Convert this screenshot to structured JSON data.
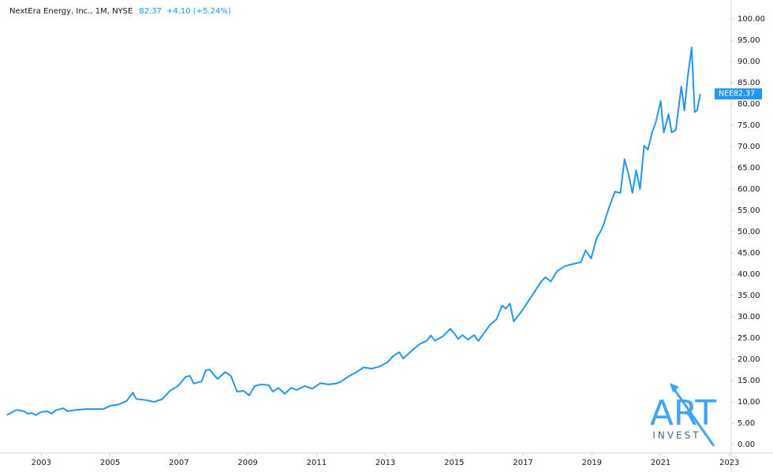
{
  "chart_data": {
    "type": "line",
    "title": "NextEra Energy, Inc., 1M, NYSE",
    "symbol": "NEE",
    "last_price": 82.37,
    "change_text": "+4.10 (+5.24%)",
    "watermark": {
      "line1": "ART",
      "line2": "INVEST"
    },
    "xlim": [
      2001.8,
      2023.05
    ],
    "xticks": [
      2003,
      2005,
      2007,
      2009,
      2011,
      2013,
      2015,
      2017,
      2019,
      2021,
      2023
    ],
    "ylim": [
      -2.04,
      104.44
    ],
    "yticks": [
      {
        "value": 0,
        "label": "0.00"
      },
      {
        "value": 5,
        "label": "5.00"
      },
      {
        "value": 10,
        "label": "10.00"
      },
      {
        "value": 15,
        "label": "15.00"
      },
      {
        "value": 20,
        "label": "20.00"
      },
      {
        "value": 25,
        "label": "25.00"
      },
      {
        "value": 30,
        "label": "30.00"
      },
      {
        "value": 35,
        "label": "35.00"
      },
      {
        "value": 40,
        "label": "40.00"
      },
      {
        "value": 45,
        "label": "45.00"
      },
      {
        "value": 50,
        "label": "50.00"
      },
      {
        "value": 55,
        "label": "55.00"
      },
      {
        "value": 60,
        "label": "60.00"
      },
      {
        "value": 65,
        "label": "65.00"
      },
      {
        "value": 70,
        "label": "70.00"
      },
      {
        "value": 75,
        "label": "75.00"
      },
      {
        "value": 80,
        "label": "80.00"
      },
      {
        "value": 85,
        "label": "85.00"
      },
      {
        "value": 90,
        "label": "90.00"
      },
      {
        "value": 95,
        "label": "95.00"
      },
      {
        "value": 100,
        "label": "100.00"
      }
    ],
    "grid": false,
    "series": [
      {
        "name": "NEE",
        "color": "#2196f3",
        "x": [
          2002.0,
          2002.27,
          2002.5,
          2002.61,
          2002.72,
          2002.84,
          2003.0,
          2003.18,
          2003.3,
          2003.41,
          2003.64,
          2003.76,
          2003.99,
          2004.33,
          2004.56,
          2004.79,
          2005.02,
          2005.25,
          2005.48,
          2005.66,
          2005.76,
          2006.05,
          2006.28,
          2006.51,
          2006.74,
          2006.97,
          2007.2,
          2007.32,
          2007.43,
          2007.66,
          2007.78,
          2007.89,
          2008.12,
          2008.35,
          2008.51,
          2008.69,
          2008.88,
          2009.04,
          2009.2,
          2009.38,
          2009.61,
          2009.73,
          2009.89,
          2010.07,
          2010.26,
          2010.42,
          2010.65,
          2010.88,
          2011.11,
          2011.34,
          2011.56,
          2011.68,
          2011.91,
          2012.14,
          2012.37,
          2012.6,
          2012.83,
          2013.06,
          2013.22,
          2013.4,
          2013.52,
          2013.75,
          2013.98,
          2014.21,
          2014.32,
          2014.44,
          2014.67,
          2014.89,
          2015.12,
          2015.24,
          2015.4,
          2015.58,
          2015.7,
          2015.86,
          2016.04,
          2016.23,
          2016.39,
          2016.5,
          2016.62,
          2016.73,
          2016.96,
          2017.19,
          2017.37,
          2017.53,
          2017.65,
          2017.81,
          2017.99,
          2018.22,
          2018.45,
          2018.68,
          2018.82,
          2018.98,
          2019.14,
          2019.3,
          2019.49,
          2019.67,
          2019.83,
          2019.95,
          2020.06,
          2020.18,
          2020.29,
          2020.4,
          2020.52,
          2020.63,
          2020.75,
          2020.86,
          2021.0,
          2021.09,
          2021.23,
          2021.32,
          2021.44,
          2021.6,
          2021.69,
          2021.78,
          2021.9,
          2021.99,
          2022.06,
          2022.15
        ],
        "values": [
          6.9,
          8.1,
          7.8,
          7.2,
          7.4,
          6.9,
          7.6,
          7.8,
          7.2,
          8.0,
          8.5,
          7.8,
          8.1,
          8.3,
          8.3,
          8.3,
          9.1,
          9.4,
          10.2,
          12.2,
          10.7,
          10.4,
          10.0,
          10.6,
          12.6,
          13.7,
          15.9,
          16.1,
          14.3,
          14.8,
          17.4,
          17.6,
          15.4,
          17.0,
          16.1,
          12.4,
          12.6,
          11.5,
          13.7,
          14.1,
          13.9,
          12.4,
          13.3,
          11.9,
          13.3,
          12.8,
          13.7,
          13.1,
          14.4,
          14.1,
          14.3,
          14.6,
          15.9,
          16.9,
          18.1,
          17.8,
          18.3,
          19.3,
          20.7,
          21.7,
          20.2,
          21.9,
          23.5,
          24.4,
          25.6,
          24.4,
          25.4,
          27.2,
          24.8,
          25.7,
          24.6,
          25.7,
          24.3,
          26.1,
          28.1,
          29.4,
          32.6,
          31.9,
          33.1,
          28.9,
          31.3,
          34.1,
          36.3,
          38.3,
          39.3,
          38.3,
          40.7,
          41.9,
          42.4,
          42.8,
          45.6,
          43.7,
          48.5,
          50.7,
          55.4,
          59.4,
          59.1,
          67.0,
          63.7,
          59.1,
          64.4,
          60.0,
          70.2,
          69.3,
          73.3,
          75.7,
          80.7,
          73.3,
          77.6,
          73.3,
          73.9,
          84.1,
          78.5,
          85.9,
          93.3,
          78.1,
          78.5,
          82.37
        ]
      }
    ]
  }
}
